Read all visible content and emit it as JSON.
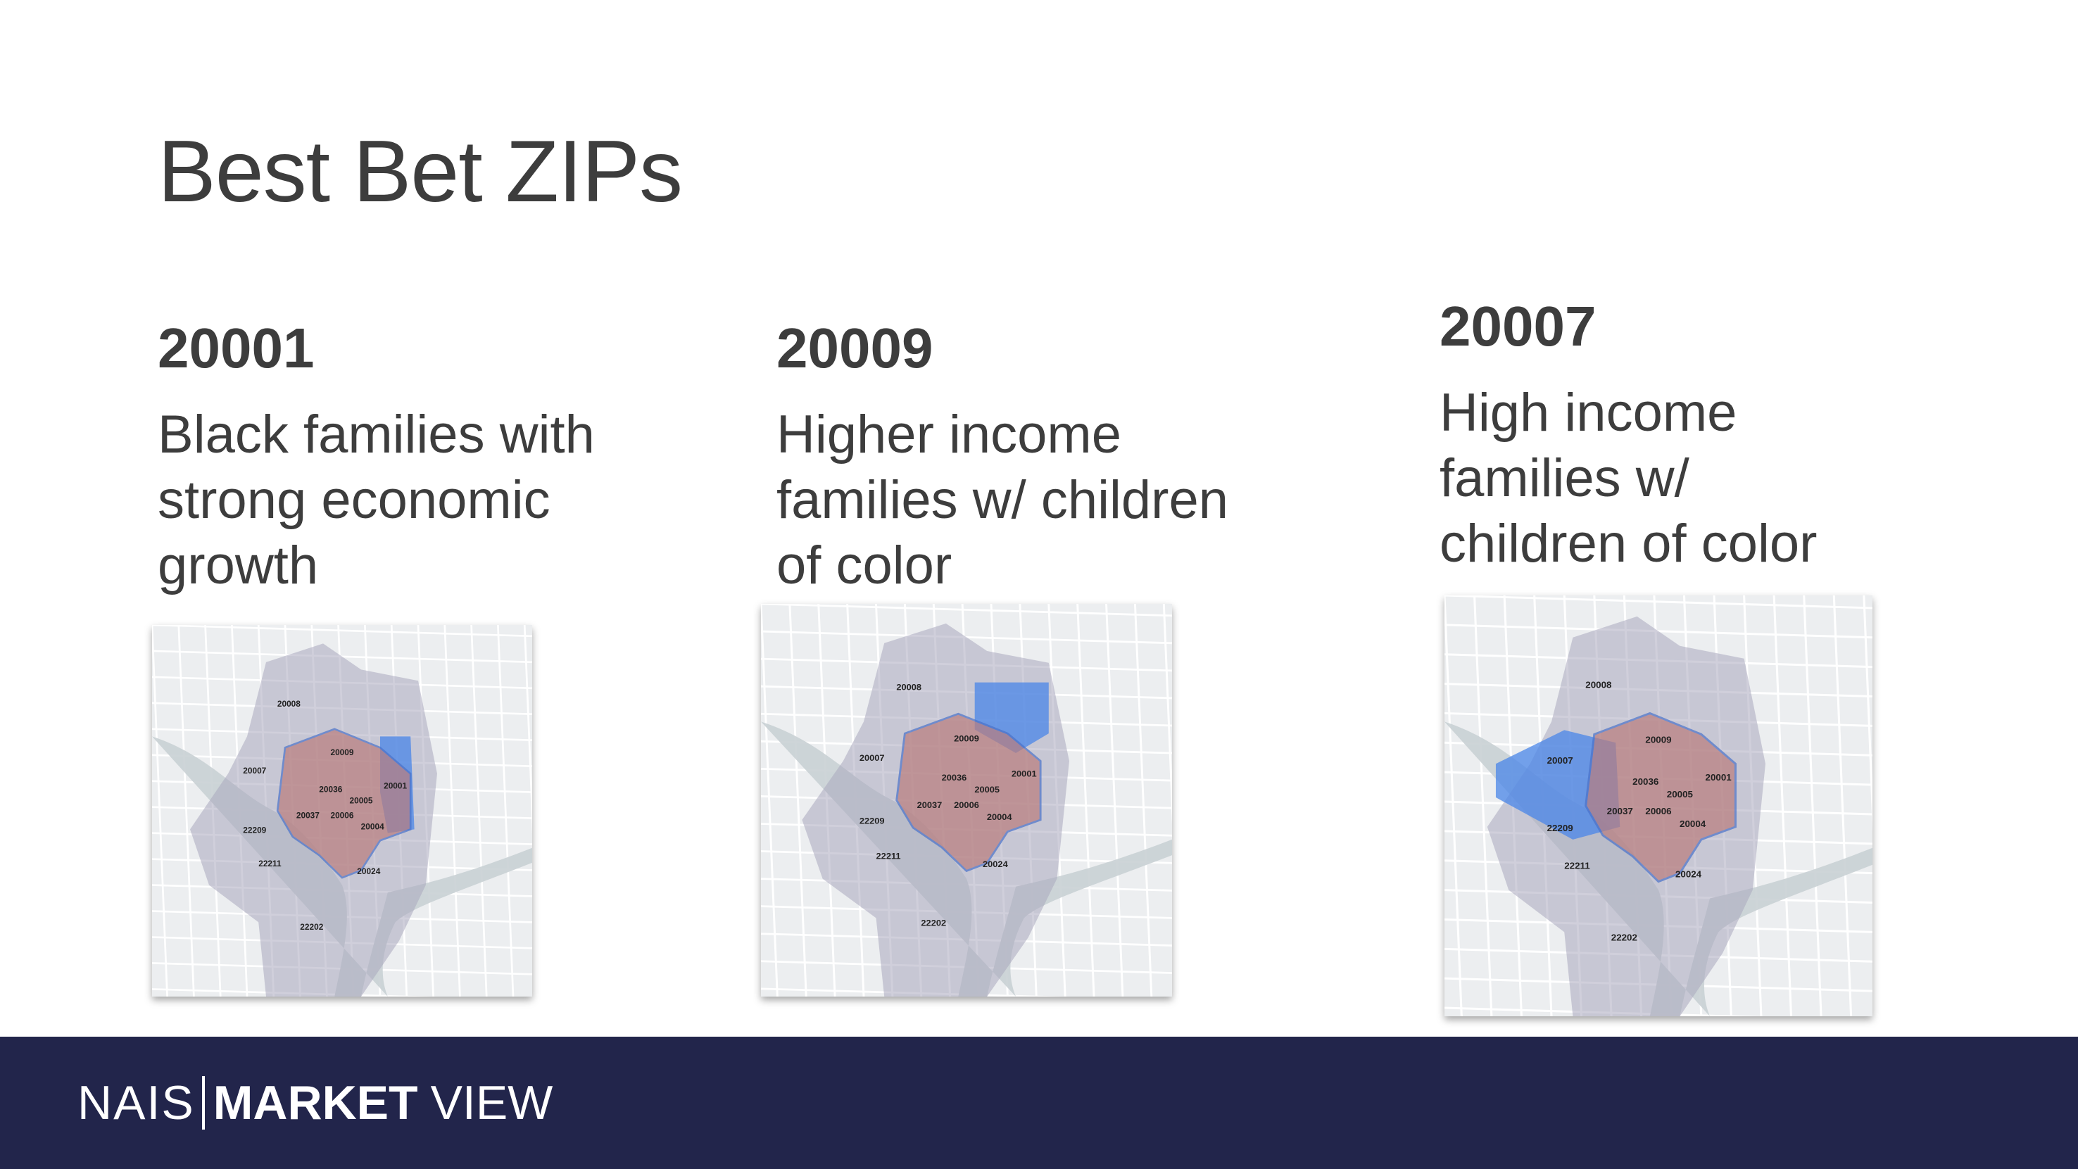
{
  "slide": {
    "title": "Best Bet ZIPs"
  },
  "columns": [
    {
      "zip": "20001",
      "desc_lines": [
        "Black families with",
        "strong economic",
        "growth"
      ],
      "map_labels": [
        "20008",
        "20009",
        "20007",
        "20036",
        "20005",
        "20001",
        "20037",
        "20006",
        "20004",
        "22209",
        "22211",
        "20024",
        "22202"
      ],
      "highlight": "east"
    },
    {
      "zip": "20009",
      "desc_lines": [
        "Higher income",
        "families w/ children",
        "of color"
      ],
      "map_labels": [
        "20008",
        "20009",
        "20007",
        "20036",
        "20005",
        "20001",
        "20037",
        "20006",
        "20004",
        "22209",
        "22211",
        "20024",
        "22202"
      ],
      "highlight": "north"
    },
    {
      "zip": "20007",
      "desc_lines": [
        "High income",
        "families w/",
        "children of color"
      ],
      "map_labels": [
        "20008",
        "20009",
        "20007",
        "20036",
        "20005",
        "20001",
        "20037",
        "20006",
        "20004",
        "22209",
        "22211",
        "20024",
        "22202"
      ],
      "highlight": "west"
    }
  ],
  "footer": {
    "brand_left": "NAIS",
    "brand_bold": "MARKET",
    "brand_right": "VIEW"
  },
  "colors": {
    "footer_bg": "#22254b",
    "highlight_blue": "#4a86e8",
    "region_red": "#b97d7d",
    "zip_gray": "#a9a8be"
  }
}
